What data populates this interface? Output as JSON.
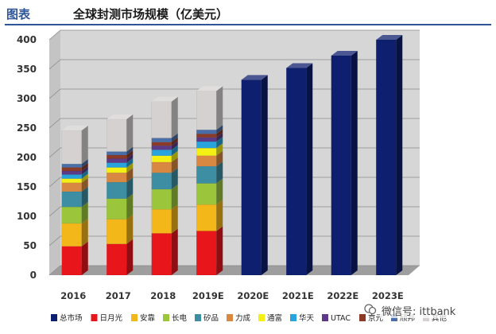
{
  "header": {
    "label": "图表",
    "title": "全球封测市场规模（亿美元）"
  },
  "watermark": {
    "text": "微信号: ittbank"
  },
  "colors": {
    "总市场": "#0d1f6e",
    "日月光": "#e8161b",
    "安靠": "#f4b71a",
    "长电": "#9bc63c",
    "矽品": "#3d8ea3",
    "力成": "#d98841",
    "通富": "#f4f013",
    "华天": "#29a3dc",
    "UTAC": "#5c3a87",
    "京元": "#8c3a28",
    "颀邦": "#4a6fa8",
    "其他": "#d5d1d1"
  },
  "chart_data": {
    "type": "bar",
    "stacked": true,
    "categories": [
      "2016",
      "2017",
      "2018",
      "2019E",
      "2020E",
      "2021E",
      "2022E",
      "2023E"
    ],
    "ylim": [
      0,
      400
    ],
    "yticks": [
      0,
      50,
      100,
      150,
      200,
      250,
      300,
      350,
      400
    ],
    "series": [
      {
        "name": "总市场",
        "values": [
          null,
          null,
          null,
          null,
          332,
          352,
          373,
          400
        ]
      },
      {
        "name": "日月光",
        "values": [
          49,
          53,
          71,
          75,
          null,
          null,
          null,
          null
        ]
      },
      {
        "name": "安靠",
        "values": [
          39,
          42,
          41,
          45,
          null,
          null,
          null,
          null
        ]
      },
      {
        "name": "长电",
        "values": [
          28,
          35,
          34,
          36,
          null,
          null,
          null,
          null
        ]
      },
      {
        "name": "矽品",
        "values": [
          26,
          28,
          28,
          29,
          null,
          null,
          null,
          null
        ]
      },
      {
        "name": "力成",
        "values": [
          15,
          16,
          18,
          18,
          null,
          null,
          null,
          null
        ]
      },
      {
        "name": "通富",
        "values": [
          7,
          9,
          11,
          13,
          null,
          null,
          null,
          null
        ]
      },
      {
        "name": "华天",
        "values": [
          7,
          8,
          10,
          11,
          null,
          null,
          null,
          null
        ]
      },
      {
        "name": "UTAC",
        "values": [
          6,
          7,
          7,
          7,
          null,
          null,
          null,
          null
        ]
      },
      {
        "name": "京元",
        "values": [
          6,
          6,
          6,
          6,
          null,
          null,
          null,
          null
        ]
      },
      {
        "name": "颀邦",
        "values": [
          6,
          6,
          7,
          7,
          null,
          null,
          null,
          null
        ]
      },
      {
        "name": "其他",
        "values": [
          57,
          55,
          62,
          66,
          null,
          null,
          null,
          null
        ]
      }
    ],
    "legend": [
      "总市场",
      "日月光",
      "安靠",
      "长电",
      "矽品",
      "力成",
      "通富",
      "华天",
      "UTAC",
      "京元",
      "颀邦",
      "其他"
    ],
    "legend_position": "bottom"
  }
}
